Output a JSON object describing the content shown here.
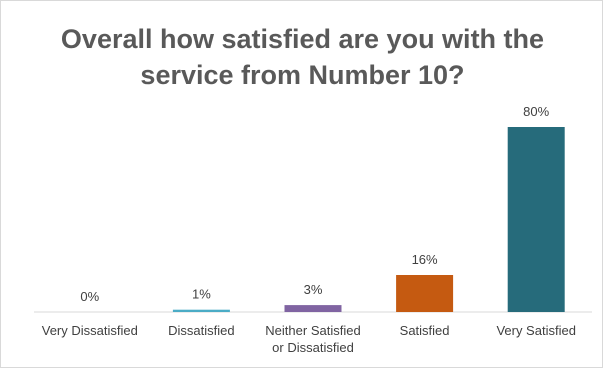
{
  "chart_data": {
    "type": "bar",
    "title_lines": [
      "Overall how satisfied are you with the",
      "service from Number 10?"
    ],
    "categories": [
      "Very Dissatisfied",
      "Dissatisfied",
      "Neither Satisfied or Dissatisfied",
      "Satisfied",
      "Very Satisfied"
    ],
    "category_lines": [
      [
        "Very Dissatisfied"
      ],
      [
        "Dissatisfied"
      ],
      [
        "Neither Satisfied",
        "or Dissatisfied"
      ],
      [
        "Satisfied"
      ],
      [
        "Very Satisfied"
      ]
    ],
    "values": [
      0,
      1,
      3,
      16,
      80
    ],
    "value_labels": [
      "0%",
      "1%",
      "3%",
      "16%",
      "80%"
    ],
    "colors": [
      "#4a86c8",
      "#4bacc6",
      "#8064a2",
      "#c55a11",
      "#266b7b"
    ],
    "ylim": [
      0,
      80
    ],
    "grid": false,
    "legend": "none"
  }
}
